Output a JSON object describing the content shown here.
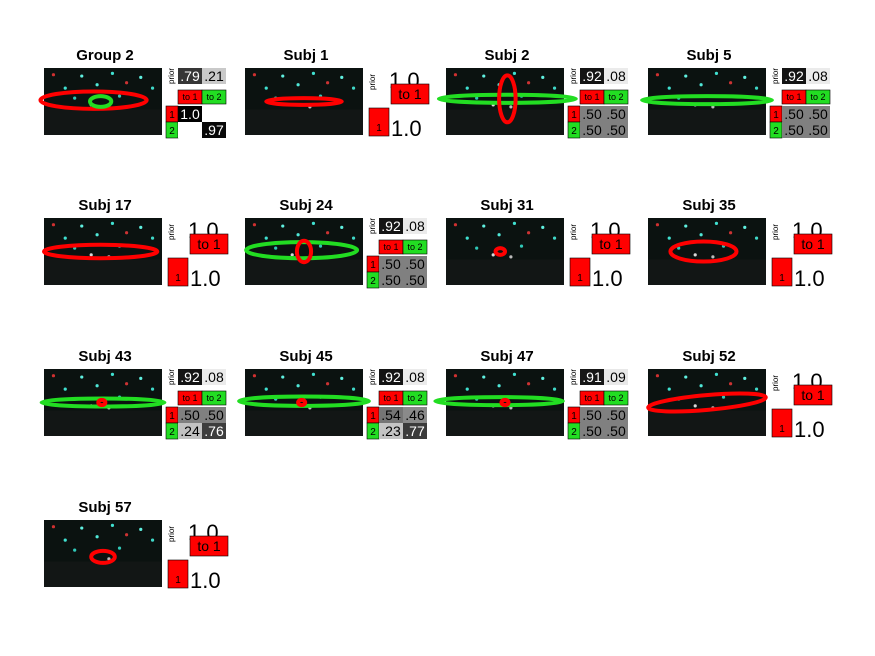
{
  "labels": {
    "prior": "prior",
    "to_1": "to 1",
    "to_2": "to 2",
    "state_1": "1",
    "state_2": "2"
  },
  "colors": {
    "state_1": "#ff0000",
    "state_2": "#22dd22",
    "background": "#ffffff"
  },
  "panels": [
    {
      "title": "Group 2",
      "states": 2,
      "prior": [
        ".79",
        ".21"
      ],
      "prior_shade": [
        0.79,
        0.21
      ],
      "trans": [
        [
          "1.0",
          ""
        ],
        [
          "",
          ".97"
        ]
      ],
      "trans_shade": [
        [
          1.0,
          0.0
        ],
        [
          0.0,
          0.97
        ]
      ],
      "ellipse_1_color": "red",
      "ellipse_2_color": "green"
    },
    {
      "title": "Subj 1",
      "states": 1,
      "prior": [
        "1.0"
      ],
      "trans": [
        [
          "1.0"
        ]
      ]
    },
    {
      "title": "Subj 2",
      "states": 2,
      "prior": [
        ".92",
        ".08"
      ],
      "prior_shade": [
        0.92,
        0.08
      ],
      "trans": [
        [
          ".50",
          ".50"
        ],
        [
          ".50",
          ".50"
        ]
      ],
      "trans_shade": [
        [
          0.5,
          0.5
        ],
        [
          0.5,
          0.5
        ]
      ]
    },
    {
      "title": "Subj 5",
      "states": 2,
      "prior": [
        ".92",
        ".08"
      ],
      "prior_shade": [
        0.92,
        0.08
      ],
      "trans": [
        [
          ".50",
          ".50"
        ],
        [
          ".50",
          ".50"
        ]
      ],
      "trans_shade": [
        [
          0.5,
          0.5
        ],
        [
          0.5,
          0.5
        ]
      ]
    },
    {
      "title": "Subj 17",
      "states": 1,
      "prior": [
        "1.0"
      ],
      "trans": [
        [
          "1.0"
        ]
      ]
    },
    {
      "title": "Subj 24",
      "states": 2,
      "prior": [
        ".92",
        ".08"
      ],
      "prior_shade": [
        0.92,
        0.08
      ],
      "trans": [
        [
          ".50",
          ".50"
        ],
        [
          ".50",
          ".50"
        ]
      ],
      "trans_shade": [
        [
          0.5,
          0.5
        ],
        [
          0.5,
          0.5
        ]
      ]
    },
    {
      "title": "Subj 31",
      "states": 1,
      "prior": [
        "1.0"
      ],
      "trans": [
        [
          "1.0"
        ]
      ]
    },
    {
      "title": "Subj 35",
      "states": 1,
      "prior": [
        "1.0"
      ],
      "trans": [
        [
          "1.0"
        ]
      ]
    },
    {
      "title": "Subj 43",
      "states": 2,
      "prior": [
        ".92",
        ".08"
      ],
      "prior_shade": [
        0.92,
        0.08
      ],
      "trans": [
        [
          ".50",
          ".50"
        ],
        [
          ".24",
          ".76"
        ]
      ],
      "trans_shade": [
        [
          0.5,
          0.5
        ],
        [
          0.24,
          0.76
        ]
      ]
    },
    {
      "title": "Subj 45",
      "states": 2,
      "prior": [
        ".92",
        ".08"
      ],
      "prior_shade": [
        0.92,
        0.08
      ],
      "trans": [
        [
          ".54",
          ".46"
        ],
        [
          ".23",
          ".77"
        ]
      ],
      "trans_shade": [
        [
          0.54,
          0.46
        ],
        [
          0.23,
          0.77
        ]
      ]
    },
    {
      "title": "Subj 47",
      "states": 2,
      "prior": [
        ".91",
        ".09"
      ],
      "prior_shade": [
        0.91,
        0.09
      ],
      "trans": [
        [
          ".50",
          ".50"
        ],
        [
          ".50",
          ".50"
        ]
      ],
      "trans_shade": [
        [
          0.5,
          0.5
        ],
        [
          0.5,
          0.5
        ]
      ]
    },
    {
      "title": "Subj 52",
      "states": 1,
      "prior": [
        "1.0"
      ],
      "trans": [
        [
          "1.0"
        ]
      ]
    },
    {
      "title": "Subj 57",
      "states": 1,
      "prior": [
        "1.0"
      ],
      "trans": [
        [
          "1.0"
        ]
      ]
    }
  ]
}
